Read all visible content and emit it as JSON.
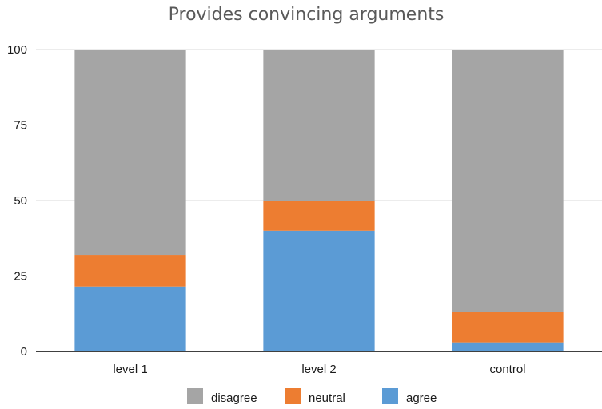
{
  "chart_data": {
    "type": "bar",
    "stacked": true,
    "title": "Provides convincing arguments",
    "xlabel": "",
    "ylabel": "",
    "ylim": [
      0,
      100
    ],
    "yticks": [
      "0",
      "25",
      "50",
      "75",
      "100"
    ],
    "grid": true,
    "legend_position": "bottom",
    "categories": [
      "level 1",
      "level 2",
      "control"
    ],
    "series": [
      {
        "name": "agree",
        "color": "#5b9bd5",
        "values": [
          21.5,
          40,
          3
        ]
      },
      {
        "name": "neutral",
        "color": "#ed7d31",
        "values": [
          10.5,
          10,
          10
        ]
      },
      {
        "name": "disagree",
        "color": "#a5a5a5",
        "values": [
          68,
          50,
          87
        ]
      }
    ],
    "legend_order": [
      "disagree",
      "neutral",
      "agree"
    ]
  }
}
